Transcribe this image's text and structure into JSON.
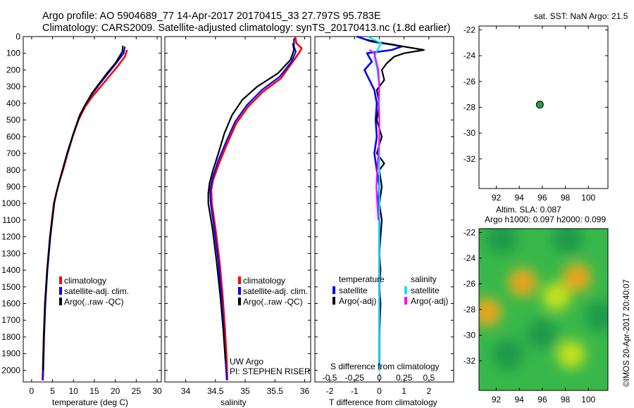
{
  "title": {
    "line1": "Argo profile: AO 5904689_77 14-Apr-2017 20170415_33 27.797S 95.783E",
    "line2": "Climatology: CARS2009. Satellite-adjusted climatology: synTS_20170413.nc (1.8d earlier)"
  },
  "depth_ticks": [
    "0",
    "100",
    "200",
    "300",
    "400",
    "500",
    "600",
    "700",
    "800",
    "900",
    "1000",
    "1100",
    "1200",
    "1300",
    "1400",
    "1500",
    "1600",
    "1700",
    "1800",
    "1900",
    "2000"
  ],
  "colors": {
    "climatology": "#ff0000",
    "satellite": "#0000ff",
    "argo": "#000000",
    "sal_satellite": "#00e5ff",
    "sal_argo": "#ff00ff",
    "dot": "#2e9a3e"
  },
  "chart_data": [
    {
      "type": "line",
      "id": "temperature",
      "xlabel": "temperature (deg C)",
      "ylabel": "",
      "xlim": [
        -2,
        31
      ],
      "ylim": [
        2070,
        0
      ],
      "xticks": [
        "0",
        "5",
        "10",
        "15",
        "20",
        "25",
        "30"
      ],
      "legend": [
        "climatology",
        "satellite-adj. clim.",
        "Argo(..raw -QC)"
      ],
      "series": [
        {
          "name": "climatology",
          "color": "#ff0000",
          "points": [
            [
              22.8,
              80
            ],
            [
              22.3,
              120
            ],
            [
              20.5,
              180
            ],
            [
              18.5,
              240
            ],
            [
              16.5,
              300
            ],
            [
              14.5,
              360
            ],
            [
              12.8,
              420
            ],
            [
              11.2,
              500
            ],
            [
              9.8,
              600
            ],
            [
              8.6,
              700
            ],
            [
              7.5,
              800
            ],
            [
              6.5,
              880
            ],
            [
              5.8,
              950
            ],
            [
              5.3,
              1000
            ],
            [
              4.4,
              1200
            ],
            [
              3.7,
              1400
            ],
            [
              3.2,
              1600
            ],
            [
              2.9,
              1800
            ],
            [
              2.7,
              2000
            ],
            [
              2.6,
              2060
            ]
          ]
        },
        {
          "name": "satellite-adj. clim.",
          "color": "#0000ff",
          "points": [
            [
              22.3,
              60
            ],
            [
              22.0,
              100
            ],
            [
              20.2,
              160
            ],
            [
              18.3,
              220
            ],
            [
              16.4,
              280
            ],
            [
              14.6,
              340
            ],
            [
              13.0,
              400
            ],
            [
              11.5,
              470
            ],
            [
              10.0,
              580
            ],
            [
              8.8,
              680
            ],
            [
              7.6,
              780
            ],
            [
              6.6,
              870
            ],
            [
              5.9,
              940
            ],
            [
              5.4,
              1000
            ],
            [
              4.5,
              1200
            ],
            [
              3.8,
              1400
            ],
            [
              3.3,
              1600
            ],
            [
              3.0,
              1800
            ],
            [
              2.8,
              2000
            ],
            [
              2.7,
              2060
            ]
          ]
        },
        {
          "name": "Argo(..raw -QC)",
          "color": "#000000",
          "points": [
            [
              21.8,
              55
            ],
            [
              21.7,
              90
            ],
            [
              20.0,
              160
            ],
            [
              18.0,
              220
            ],
            [
              16.2,
              280
            ],
            [
              14.4,
              340
            ],
            [
              12.8,
              410
            ],
            [
              11.4,
              480
            ],
            [
              10.0,
              580
            ],
            [
              8.7,
              680
            ],
            [
              7.6,
              780
            ],
            [
              6.6,
              870
            ],
            [
              5.9,
              940
            ],
            [
              5.4,
              1000
            ],
            [
              4.4,
              1200
            ],
            [
              3.7,
              1400
            ],
            [
              3.2,
              1600
            ],
            [
              2.9,
              1800
            ],
            [
              2.7,
              2000
            ]
          ]
        }
      ]
    },
    {
      "type": "line",
      "id": "salinity",
      "xlabel": "salinity",
      "xlim": [
        33.65,
        36.1
      ],
      "ylim": [
        2070,
        0
      ],
      "xticks": [
        "34",
        "34.5",
        "35",
        "35.5",
        "36"
      ],
      "legend": [
        "climatology",
        "satellite-adj. clim.",
        "Argo(..raw -QC)"
      ],
      "annotation": [
        "UW Argo",
        "PI: STEPHEN RISER"
      ],
      "series": [
        {
          "name": "climatology",
          "color": "#ff0000",
          "points": [
            [
              35.84,
              0
            ],
            [
              35.86,
              40
            ],
            [
              35.95,
              70
            ],
            [
              35.9,
              100
            ],
            [
              35.8,
              150
            ],
            [
              35.6,
              250
            ],
            [
              35.3,
              330
            ],
            [
              35.05,
              420
            ],
            [
              34.85,
              520
            ],
            [
              34.7,
              640
            ],
            [
              34.56,
              760
            ],
            [
              34.46,
              860
            ],
            [
              34.43,
              920
            ],
            [
              34.44,
              1000
            ],
            [
              34.5,
              1150
            ],
            [
              34.57,
              1350
            ],
            [
              34.62,
              1550
            ],
            [
              34.66,
              1750
            ],
            [
              34.69,
              1950
            ],
            [
              34.7,
              2060
            ]
          ]
        },
        {
          "name": "satellite-adj. clim.",
          "color": "#0000ff",
          "points": [
            [
              35.82,
              10
            ],
            [
              35.82,
              60
            ],
            [
              35.85,
              90
            ],
            [
              35.78,
              150
            ],
            [
              35.58,
              240
            ],
            [
              35.28,
              320
            ],
            [
              35.03,
              410
            ],
            [
              34.83,
              510
            ],
            [
              34.68,
              630
            ],
            [
              34.54,
              750
            ],
            [
              34.45,
              850
            ],
            [
              34.41,
              920
            ],
            [
              34.42,
              1000
            ],
            [
              34.48,
              1150
            ],
            [
              34.55,
              1350
            ],
            [
              34.6,
              1550
            ],
            [
              34.64,
              1750
            ],
            [
              34.67,
              1950
            ],
            [
              34.69,
              2060
            ]
          ]
        },
        {
          "name": "Argo(..raw -QC)",
          "color": "#000000",
          "points": [
            [
              35.8,
              40
            ],
            [
              35.82,
              80
            ],
            [
              35.76,
              140
            ],
            [
              35.55,
              220
            ],
            [
              35.2,
              300
            ],
            [
              34.95,
              380
            ],
            [
              34.78,
              470
            ],
            [
              34.65,
              580
            ],
            [
              34.55,
              700
            ],
            [
              34.46,
              800
            ],
            [
              34.4,
              880
            ],
            [
              34.38,
              940
            ],
            [
              34.38,
              1000
            ],
            [
              34.45,
              1150
            ],
            [
              34.52,
              1350
            ],
            [
              34.58,
              1550
            ],
            [
              34.63,
              1750
            ],
            [
              34.67,
              1950
            ]
          ]
        }
      ]
    },
    {
      "type": "line",
      "id": "difference",
      "xlabel": "T difference from climatology",
      "xlabel_top": "S difference from climatology",
      "xlim": [
        -2.6,
        3.0
      ],
      "ylim": [
        2070,
        0
      ],
      "xticks": [
        "-2",
        "-1",
        "0",
        "1",
        "2"
      ],
      "top_ticks": [
        "-0.5",
        "-0.25",
        "0",
        "0.25",
        "0.5"
      ],
      "legend_temperature": {
        "title": "temperature",
        "items": [
          "satellite",
          "Argo(-adj)"
        ]
      },
      "legend_salinity": {
        "title": "salinity",
        "items": [
          "satellite",
          "Argo(-adj)"
        ]
      },
      "series": [
        {
          "name": "T satellite",
          "color": "#0000ff",
          "points": [
            [
              -0.9,
              0
            ],
            [
              -0.3,
              30
            ],
            [
              0.6,
              50
            ],
            [
              0.9,
              60
            ],
            [
              0.5,
              80
            ],
            [
              -0.5,
              100
            ],
            [
              -0.3,
              150
            ],
            [
              -0.6,
              200
            ],
            [
              -0.4,
              260
            ],
            [
              -0.2,
              320
            ],
            [
              -0.1,
              400
            ],
            [
              -0.15,
              500
            ],
            [
              -0.1,
              600
            ],
            [
              -0.2,
              700
            ],
            [
              -0.1,
              800
            ],
            [
              0,
              900
            ],
            [
              -0.05,
              1000
            ],
            [
              0,
              1100
            ],
            [
              0,
              1200
            ],
            [
              0,
              1400
            ],
            [
              0,
              1600
            ],
            [
              0,
              1800
            ],
            [
              0,
              2000
            ]
          ]
        },
        {
          "name": "T Argo(-adj)",
          "color": "#000000",
          "points": [
            [
              -0.5,
              20
            ],
            [
              0.2,
              40
            ],
            [
              1.8,
              80
            ],
            [
              1.0,
              100
            ],
            [
              0.6,
              120
            ],
            [
              0.3,
              160
            ],
            [
              0.1,
              200
            ],
            [
              0.2,
              260
            ],
            [
              -0.1,
              320
            ],
            [
              0,
              400
            ],
            [
              -0.1,
              500
            ],
            [
              0.1,
              600
            ],
            [
              -0.1,
              700
            ],
            [
              0.2,
              760
            ],
            [
              0,
              800
            ],
            [
              0.1,
              900
            ],
            [
              0,
              1000
            ],
            [
              0.1,
              1100
            ],
            [
              0.05,
              1200
            ],
            [
              0,
              1300
            ],
            [
              0.05,
              1400
            ],
            [
              0,
              1500
            ],
            [
              0.05,
              1600
            ],
            [
              0,
              1800
            ],
            [
              0,
              2000
            ]
          ]
        },
        {
          "name": "S satellite",
          "color": "#00e5ff",
          "points": [
            [
              -0.12,
              0
            ],
            [
              0.02,
              40
            ],
            [
              -0.02,
              80
            ],
            [
              -0.05,
              120
            ],
            [
              -0.02,
              200
            ],
            [
              0,
              300
            ],
            [
              0,
              400
            ],
            [
              0,
              500
            ],
            [
              0,
              700
            ],
            [
              0,
              900
            ],
            [
              0,
              1100
            ],
            [
              0,
              1300
            ],
            [
              0,
              1500
            ],
            [
              0,
              1700
            ],
            [
              0,
              1900
            ],
            [
              0,
              2000
            ]
          ]
        },
        {
          "name": "S Argo(-adj)",
          "color": "#ff00ff",
          "points": [
            [
              -0.1,
              80
            ],
            [
              -0.05,
              100
            ],
            [
              -0.03,
              150
            ],
            [
              -0.01,
              200
            ],
            [
              0,
              300
            ],
            [
              -0.01,
              400
            ],
            [
              0,
              500
            ],
            [
              0,
              600
            ],
            [
              -0.01,
              700
            ],
            [
              -0.02,
              800
            ],
            [
              -0.03,
              900
            ],
            [
              -0.02,
              1000
            ],
            [
              -0.01,
              1100
            ]
          ]
        }
      ]
    },
    {
      "type": "scatter",
      "id": "sst_map",
      "title": "sat. SST: NaN Argo: 21.5",
      "xlim": [
        90.5,
        101.7
      ],
      "ylim": [
        -34.3,
        -21.7
      ],
      "xticks": [
        "92",
        "94",
        "96",
        "98",
        "100"
      ],
      "yticks": [
        "-22",
        "-24",
        "-26",
        "-28",
        "-30",
        "-32"
      ],
      "points": [
        {
          "lon": 95.783,
          "lat": -27.797
        }
      ]
    },
    {
      "type": "heatmap",
      "id": "sla_map",
      "title_line1": "Altim. SLA: 0.087",
      "title_line2": "Argo h1000: 0.097 h2000: 0.099",
      "xlim": [
        90.5,
        101.7
      ],
      "ylim": [
        -34.3,
        -21.7
      ],
      "xticks": [
        "92",
        "94",
        "96",
        "98",
        "100"
      ],
      "yticks": [
        "-22",
        "-24",
        "-26",
        "-28",
        "-30",
        "-32"
      ],
      "credit": "©IMOS 20-Apr-2017 20:40:07",
      "blobs": [
        {
          "lon": 94.3,
          "lat": -25.9,
          "value": 0.9
        },
        {
          "lon": 99.0,
          "lat": -25.5,
          "value": 0.9
        },
        {
          "lon": 91.2,
          "lat": -28.2,
          "value": 0.8
        },
        {
          "lon": 97.2,
          "lat": -27.0,
          "value": 0.5
        },
        {
          "lon": 98.5,
          "lat": -31.5,
          "value": 0.4
        },
        {
          "lon": 92.5,
          "lat": -22.5,
          "value": -0.5
        },
        {
          "lon": 98.2,
          "lat": -22.5,
          "value": -0.5
        },
        {
          "lon": 96.0,
          "lat": -29.9,
          "value": -0.6
        },
        {
          "lon": 93.0,
          "lat": -31.5,
          "value": -0.4
        },
        {
          "lon": 101.0,
          "lat": -28.5,
          "value": -0.4
        }
      ]
    }
  ]
}
